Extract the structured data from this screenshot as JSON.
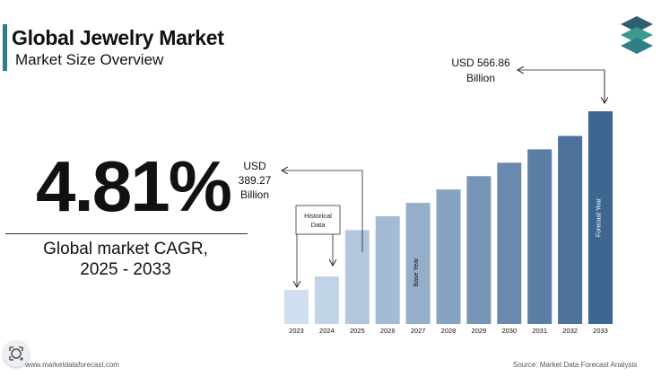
{
  "header": {
    "title": "Global Jewelry Market",
    "subtitle": "Market Size Overview"
  },
  "cagr": {
    "value": "4.81%",
    "label_line1": "Global market CAGR,",
    "label_line2": "2025 - 2033"
  },
  "annotations": {
    "start": [
      "USD",
      "389.27",
      "Billion"
    ],
    "end": [
      "USD 566.86",
      "Billion"
    ],
    "historical": [
      "Historical",
      "Data"
    ],
    "base_year": "Base Year",
    "forecast_year": "Forecast Year"
  },
  "footer": {
    "source_left": "www.marketdataforecast.com",
    "source_right": "Source: Market Data Forecast Analysis"
  },
  "colors": {
    "accent": "#2f7f86",
    "bar_start": "#cfdff0",
    "bar_end": "#3d6691"
  },
  "icons": {
    "logo": "stacked-layers-icon",
    "lens": "google-lens-icon"
  },
  "chart_data": {
    "type": "bar",
    "categories": [
      "2023",
      "2024",
      "2025",
      "2026",
      "2027",
      "2028",
      "2029",
      "2030",
      "2031",
      "2032",
      "2033"
    ],
    "values": [
      300,
      320,
      389.27,
      410,
      430,
      450,
      470,
      490,
      510,
      530,
      566.86
    ],
    "highlight": {
      "2027": "Base Year",
      "2033": "Forecast Year"
    }
  }
}
